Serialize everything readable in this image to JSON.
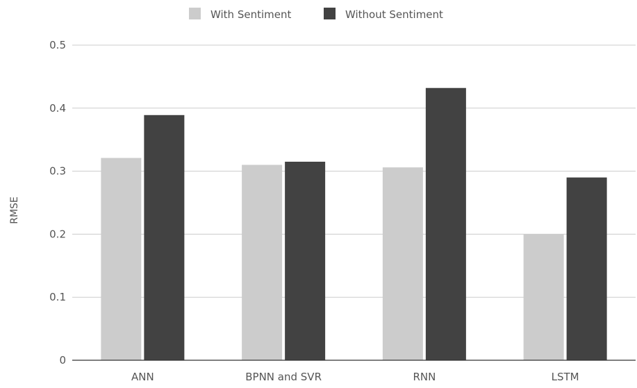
{
  "chart_data": {
    "type": "bar",
    "title": "",
    "xlabel": "",
    "ylabel": "RMSE",
    "categories": [
      "ANN",
      "BPNN and SVR",
      "RNN",
      "LSTM"
    ],
    "series": [
      {
        "name": "With Sentiment",
        "color": "#cccccc",
        "values": [
          0.321,
          0.31,
          0.306,
          0.2
        ]
      },
      {
        "name": "Without Sentiment",
        "color": "#424242",
        "values": [
          0.389,
          0.315,
          0.432,
          0.29
        ]
      }
    ],
    "ylim": [
      0,
      0.5
    ],
    "yticks": [
      "0",
      "0.1",
      "0.2",
      "0.3",
      "0.4",
      "0.5"
    ],
    "grid": true,
    "legend_position": "top"
  }
}
